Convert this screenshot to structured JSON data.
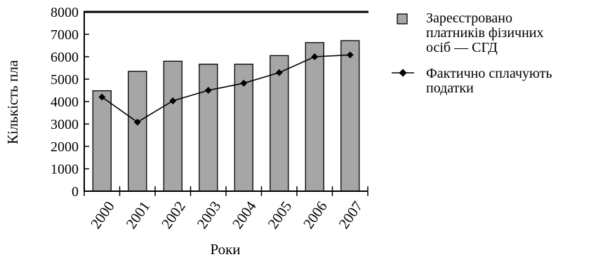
{
  "chart_data": {
    "type": "bar",
    "title": "",
    "xlabel": "Роки",
    "ylabel": "Кількість пла",
    "categories": [
      "2000",
      "2001",
      "2002",
      "2003",
      "2004",
      "2005",
      "2006",
      "2007"
    ],
    "ylim": [
      0,
      8000
    ],
    "yticks": [
      "0",
      "1000",
      "2000",
      "3000",
      "4000",
      "5000",
      "6000",
      "7000",
      "8000"
    ],
    "grid": false,
    "legend_position": "right",
    "series": [
      {
        "name": "Зареєстровано платників фізичних осіб — СГД",
        "name_lines": [
          "Зареєстровано",
          "платників фізичних",
          "осіб — СГД"
        ],
        "kind": "bar",
        "color": "#a6a6a6",
        "values": [
          4480,
          5350,
          5800,
          5670,
          5670,
          6050,
          6630,
          6720
        ]
      },
      {
        "name": "Фактично сплачують податки",
        "name_lines": [
          "Фактично сплачують",
          "податки"
        ],
        "kind": "line",
        "color": "#000000",
        "values": [
          4200,
          3080,
          4030,
          4500,
          4820,
          5290,
          6000,
          6080
        ]
      }
    ]
  }
}
